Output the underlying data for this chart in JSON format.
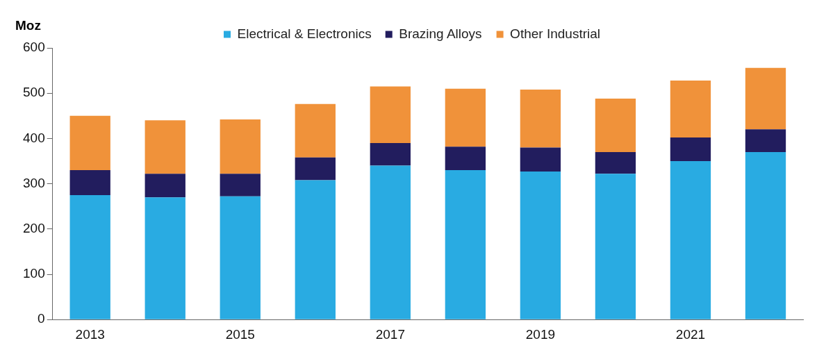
{
  "chart_data": {
    "type": "bar",
    "stacked": true,
    "ylabel": "Moz",
    "categories": [
      "2013",
      null,
      "2015",
      null,
      "2017",
      null,
      "2019",
      null,
      "2021",
      null
    ],
    "series": [
      {
        "name": "Electrical & Electronics",
        "color": "#29abe2",
        "values": [
          275,
          270,
          272,
          308,
          340,
          330,
          327,
          322,
          350,
          370
        ]
      },
      {
        "name": "Brazing Alloys",
        "color": "#221d5e",
        "values": [
          55,
          52,
          50,
          50,
          50,
          52,
          53,
          48,
          52,
          50
        ]
      },
      {
        "name": "Other Industrial",
        "color": "#f0923a",
        "values": [
          120,
          118,
          120,
          118,
          125,
          128,
          128,
          118,
          126,
          136
        ]
      }
    ],
    "ylim": [
      0,
      600
    ],
    "yticks": [
      0,
      100,
      200,
      300,
      400,
      500,
      600
    ],
    "grid": false,
    "legend": "top"
  }
}
